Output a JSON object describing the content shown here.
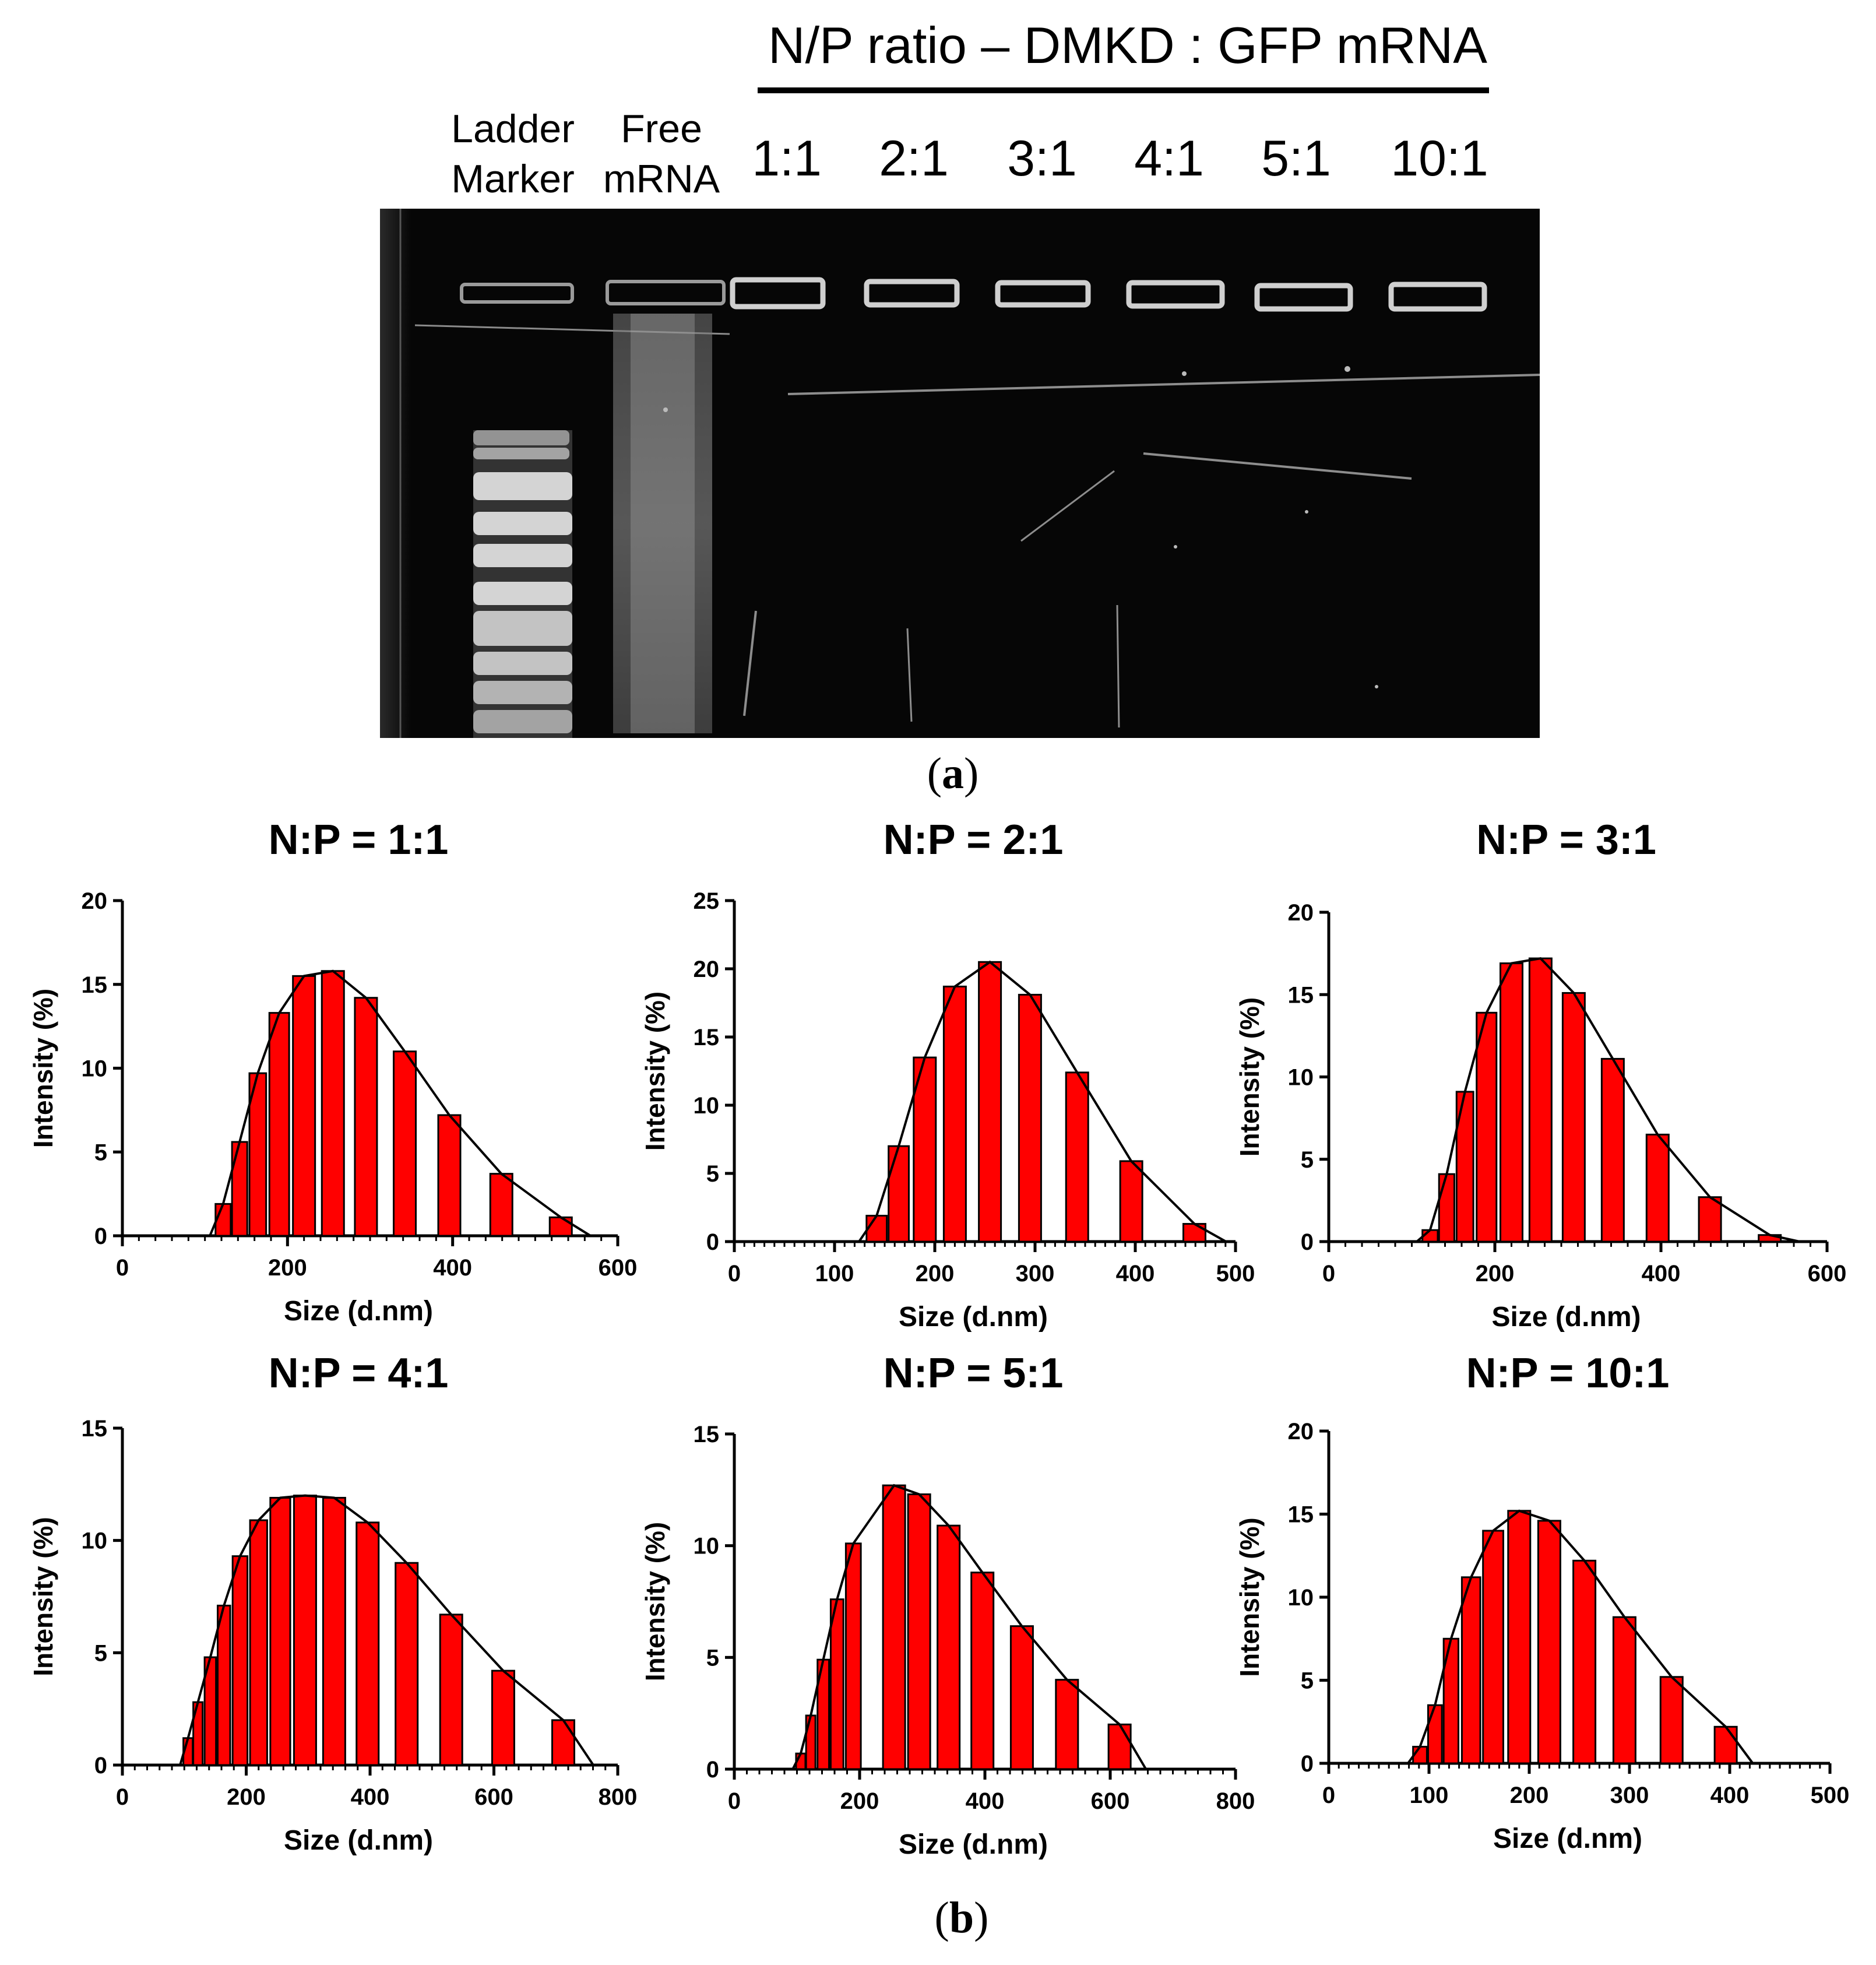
{
  "gel": {
    "title": "N/P ratio – DMKD : GFP mRNA",
    "lane_labels": [
      {
        "line1": "Ladder",
        "line2": "Marker"
      },
      {
        "line1": "Free",
        "line2": "mRNA"
      }
    ],
    "ratio_labels": [
      "1:1",
      "2:1",
      "3:1",
      "4:1",
      "5:1",
      "10:1"
    ]
  },
  "captions": {
    "a": {
      "open": "(",
      "letter": "a",
      "close": ")"
    },
    "b": {
      "open": "(",
      "letter": "b",
      "close": ")"
    }
  },
  "chart_data": [
    {
      "type": "bar",
      "title": "N:P = 1:1",
      "xlabel": "Size (d.nm)",
      "ylabel": "Intensity (%)",
      "xlim": [
        0,
        600
      ],
      "ylim": [
        0,
        20
      ],
      "xticks": [
        0,
        200,
        400,
        600
      ],
      "yticks": [
        0,
        5,
        10,
        15,
        20
      ],
      "x": [
        122,
        142,
        164,
        190,
        220,
        255,
        295,
        342,
        396,
        459,
        531
      ],
      "values": [
        1.9,
        5.6,
        9.7,
        13.3,
        15.5,
        15.8,
        14.2,
        11.0,
        7.2,
        3.7,
        1.1
      ]
    },
    {
      "type": "bar",
      "title": "N:P = 2:1",
      "xlabel": "Size (d.nm)",
      "ylabel": "Intensity (%)",
      "xlim": [
        0,
        500
      ],
      "ylim": [
        0,
        25
      ],
      "xticks": [
        0,
        100,
        200,
        300,
        400,
        500
      ],
      "yticks": [
        0,
        5,
        10,
        15,
        20,
        25
      ],
      "x": [
        142,
        164,
        190,
        220,
        255,
        295,
        342,
        396,
        459
      ],
      "values": [
        1.9,
        7.0,
        13.5,
        18.7,
        20.5,
        18.1,
        12.4,
        5.9,
        1.3
      ]
    },
    {
      "type": "bar",
      "title": "N:P = 3:1",
      "xlabel": "Size (d.nm)",
      "ylabel": "Intensity (%)",
      "xlim": [
        0,
        600
      ],
      "ylim": [
        0,
        20
      ],
      "xticks": [
        0,
        200,
        400,
        600
      ],
      "yticks": [
        0,
        5,
        10,
        15,
        20
      ],
      "x": [
        122,
        142,
        164,
        190,
        220,
        255,
        295,
        342,
        396,
        459,
        531
      ],
      "values": [
        0.7,
        4.1,
        9.1,
        13.9,
        16.9,
        17.2,
        15.1,
        11.1,
        6.5,
        2.7,
        0.4
      ]
    },
    {
      "type": "bar",
      "title": "N:P = 4:1",
      "xlabel": "Size (d.nm)",
      "ylabel": "Intensity (%)",
      "xlim": [
        0,
        800
      ],
      "ylim": [
        0,
        15
      ],
      "xticks": [
        0,
        200,
        400,
        600,
        800
      ],
      "yticks": [
        0,
        5,
        10,
        15
      ],
      "x": [
        106,
        122,
        142,
        164,
        190,
        220,
        255,
        295,
        342,
        396,
        459,
        531,
        615,
        712
      ],
      "values": [
        1.2,
        2.8,
        4.8,
        7.1,
        9.3,
        10.9,
        11.9,
        12.0,
        11.9,
        10.8,
        9.0,
        6.7,
        4.2,
        2.0
      ]
    },
    {
      "type": "bar",
      "title": "N:P = 5:1",
      "xlabel": "Size (d.nm)",
      "ylabel": "Intensity (%)",
      "xlim": [
        0,
        800
      ],
      "ylim": [
        0,
        15
      ],
      "xticks": [
        0,
        200,
        400,
        600,
        800
      ],
      "yticks": [
        0,
        5,
        10,
        15
      ],
      "x": [
        106,
        122,
        142,
        164,
        190,
        255,
        295,
        342,
        396,
        459,
        531,
        615
      ],
      "values": [
        0.7,
        2.4,
        4.9,
        7.6,
        10.1,
        12.7,
        12.3,
        10.9,
        8.8,
        6.4,
        4.0,
        2.0
      ]
    },
    {
      "type": "bar",
      "title": "N:P = 10:1",
      "xlabel": "Size (d.nm)",
      "ylabel": "Intensity (%)",
      "xlim": [
        0,
        500
      ],
      "ylim": [
        0,
        20
      ],
      "xticks": [
        0,
        100,
        200,
        300,
        400,
        500
      ],
      "yticks": [
        0,
        5,
        10,
        15,
        20
      ],
      "x": [
        91,
        106,
        122,
        142,
        164,
        190,
        220,
        255,
        295,
        342,
        396
      ],
      "values": [
        1.0,
        3.5,
        7.5,
        11.2,
        14.0,
        15.2,
        14.6,
        12.2,
        8.8,
        5.2,
        2.2
      ]
    }
  ]
}
